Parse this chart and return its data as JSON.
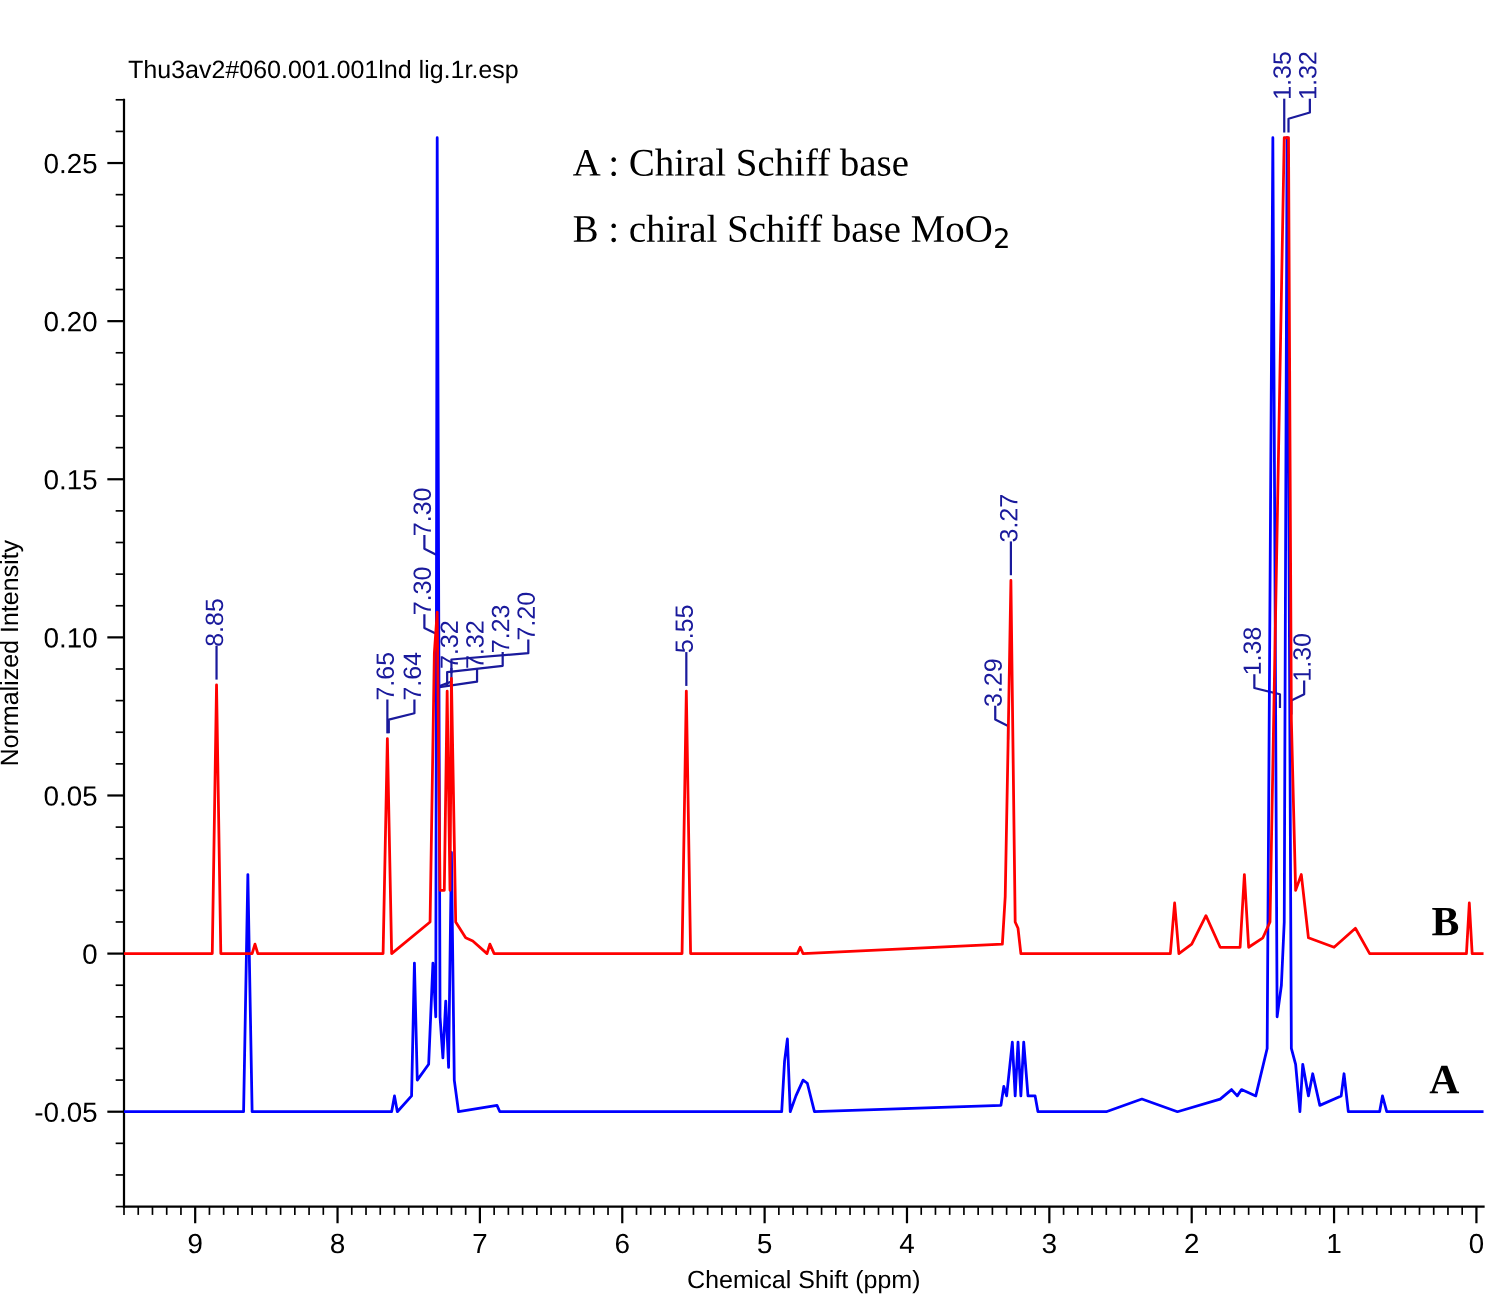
{
  "chart_data": {
    "type": "line",
    "title": "Thu3av2#060.001.001lnd lig.1r.esp",
    "xlabel": "Chemical Shift (ppm)",
    "ylabel": "Normalized Intensity",
    "xlim": [
      9.5,
      -0.05
    ],
    "ylim": [
      -0.08,
      0.27
    ],
    "xticks": [
      9,
      8,
      7,
      6,
      5,
      4,
      3,
      2,
      1,
      0
    ],
    "yticks": [
      {
        "value": -0.05,
        "label": "-0.05"
      },
      {
        "value": 0,
        "label": "0"
      },
      0.05,
      {
        "value": 0.1,
        "label": "0.10"
      },
      0.15,
      {
        "value": 0.2,
        "label": "0.20"
      },
      0.25
    ],
    "grid": false,
    "marker": "none",
    "line_style": "solid",
    "series": [
      {
        "name": "B",
        "color": "#ff0000",
        "x": [
          9.5,
          8.88,
          8.85,
          8.82,
          8.6,
          8.58,
          8.56,
          7.68,
          7.65,
          7.62,
          7.35,
          7.32,
          7.3,
          7.28,
          7.25,
          7.23,
          7.21,
          7.2,
          7.17,
          7.1,
          7.05,
          6.95,
          6.93,
          6.9,
          5.58,
          5.55,
          5.52,
          4.77,
          4.75,
          4.73,
          3.33,
          3.31,
          3.29,
          3.27,
          3.24,
          3.22,
          3.2,
          2.15,
          2.12,
          2.09,
          2.0,
          1.9,
          1.8,
          1.66,
          1.63,
          1.6,
          1.5,
          1.45,
          1.35,
          1.32,
          1.3,
          1.27,
          1.23,
          1.18,
          1.0,
          0.85,
          0.75,
          0.07,
          0.05,
          0.03,
          -0.05
        ],
        "values": [
          0,
          0,
          0.085,
          0,
          0,
          0.003,
          0,
          0,
          0.068,
          0,
          0.01,
          0.095,
          0.108,
          0.02,
          0.02,
          0.083,
          0.02,
          0.087,
          0.01,
          0.005,
          0.004,
          0,
          0.003,
          0,
          0,
          0.083,
          0,
          0,
          0.002,
          0,
          0.003,
          0.018,
          0.066,
          0.118,
          0.01,
          0.008,
          0,
          0,
          0.016,
          0,
          0.003,
          0.012,
          0.002,
          0.002,
          0.025,
          0.002,
          0.005,
          0.01,
          0.258,
          0.258,
          0.074,
          0.02,
          0.025,
          0.005,
          0.002,
          0.008,
          0,
          0,
          0.016,
          0,
          0
        ]
      },
      {
        "name": "A",
        "color": "#0000ff",
        "x": [
          9.5,
          8.66,
          8.63,
          8.6,
          7.62,
          7.6,
          7.58,
          7.48,
          7.46,
          7.44,
          7.36,
          7.33,
          7.31,
          7.3,
          7.28,
          7.26,
          7.24,
          7.22,
          7.2,
          7.18,
          7.15,
          6.88,
          6.86,
          4.88,
          4.86,
          4.84,
          4.82,
          4.78,
          4.73,
          4.7,
          4.65,
          3.34,
          3.32,
          3.3,
          3.26,
          3.24,
          3.22,
          3.2,
          3.18,
          3.15,
          3.1,
          3.08,
          2.6,
          2.35,
          2.1,
          1.8,
          1.72,
          1.68,
          1.65,
          1.55,
          1.47,
          1.43,
          1.4,
          1.37,
          1.35,
          1.33,
          1.3,
          1.27,
          1.24,
          1.22,
          1.18,
          1.15,
          1.1,
          0.95,
          0.93,
          0.9,
          0.68,
          0.66,
          0.63,
          -0.05
        ],
        "values": [
          -0.05,
          -0.05,
          0.025,
          -0.05,
          -0.05,
          -0.045,
          -0.05,
          -0.045,
          -0.003,
          -0.04,
          -0.035,
          -0.003,
          -0.02,
          0.258,
          -0.02,
          -0.033,
          -0.015,
          -0.036,
          0.032,
          -0.04,
          -0.05,
          -0.048,
          -0.05,
          -0.05,
          -0.034,
          -0.027,
          -0.05,
          -0.045,
          -0.04,
          -0.041,
          -0.05,
          -0.048,
          -0.042,
          -0.045,
          -0.028,
          -0.045,
          -0.028,
          -0.045,
          -0.028,
          -0.045,
          -0.045,
          -0.05,
          -0.05,
          -0.046,
          -0.05,
          -0.046,
          -0.043,
          -0.045,
          -0.043,
          -0.045,
          -0.03,
          0.258,
          -0.02,
          -0.01,
          0.01,
          0.258,
          -0.03,
          -0.035,
          -0.05,
          -0.035,
          -0.045,
          -0.038,
          -0.048,
          -0.045,
          -0.038,
          -0.05,
          -0.05,
          -0.045,
          -0.05,
          -0.05
        ]
      }
    ],
    "annotations": [
      "A : Chiral Schiff base",
      "B : chiral Schiff base MoO$_{2}$",
      {
        "text": "8.85",
        "x": 8.85,
        "y": 0.085
      },
      {
        "text": "7.65",
        "x": 7.65,
        "y": 0.068
      },
      {
        "text": "7.64",
        "x": 7.64,
        "y": 0.068
      },
      {
        "text": "7.32",
        "x": 7.32,
        "y": 0.078
      },
      {
        "text": "7.32",
        "x": 7.32,
        "y": 0.078
      },
      {
        "text": "7.30",
        "x": 7.3,
        "y": 0.095
      },
      {
        "text": "7.30",
        "x": 7.3,
        "y": 0.12
      },
      {
        "text": "7.23",
        "x": 7.23,
        "y": 0.083
      },
      {
        "text": "7.20",
        "x": 7.2,
        "y": 0.087
      },
      {
        "text": "5.55",
        "x": 5.55,
        "y": 0.083
      },
      {
        "text": "3.29",
        "x": 3.29,
        "y": 0.066
      },
      {
        "text": "3.27",
        "x": 3.27,
        "y": 0.118
      },
      {
        "text": "1.38",
        "x": 1.38,
        "y": 0.076
      },
      {
        "text": "1.35",
        "x": 1.35,
        "y": 0.258
      },
      {
        "text": "1.32",
        "x": 1.32,
        "y": 0.258
      },
      {
        "text": "1.30",
        "x": 1.3,
        "y": 0.074
      }
    ]
  }
}
